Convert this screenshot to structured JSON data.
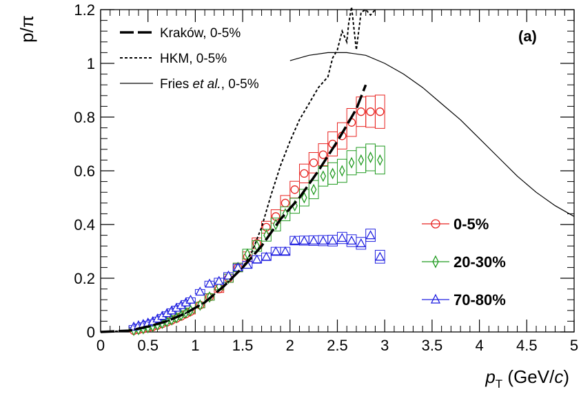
{
  "chart_data": {
    "type": "scatter",
    "title": "",
    "ylabel": "p/π",
    "xlabel": {
      "base": "p",
      "sub": "T",
      "units_prefix": " (GeV/",
      "units_italic": "c",
      "units_suffix": ")"
    },
    "panel_label": "(a)",
    "xlim": [
      0,
      5
    ],
    "ylim": [
      0,
      1.2
    ],
    "x_ticks": [
      0,
      0.5,
      1,
      1.5,
      2,
      2.5,
      3,
      3.5,
      4,
      4.5,
      5
    ],
    "x_tick_labels": [
      "0",
      "0.5",
      "1",
      "1.5",
      "2",
      "2.5",
      "3",
      "3.5",
      "4",
      "4.5",
      "5"
    ],
    "y_ticks": [
      0,
      0.2,
      0.4,
      0.6,
      0.8,
      1,
      1.2
    ],
    "y_tick_labels": [
      "0",
      "0.2",
      "0.4",
      "0.6",
      "0.8",
      "1",
      "1.2"
    ],
    "grid": false,
    "legend_models": {
      "placement": "top-left",
      "entries": [
        {
          "label": "Kraków, 0-5%",
          "style": "dashed-thick"
        },
        {
          "label_prefix": "HKM, 0-5%",
          "style": "dotted"
        },
        {
          "label_prefix": "Fries ",
          "label_italic": "et al.",
          "label_suffix": ", 0-5%",
          "style": "solid-thin"
        }
      ]
    },
    "legend_data": {
      "placement": "right",
      "entries": [
        {
          "label": "0-5%",
          "marker": "circle",
          "color": "#e8211e"
        },
        {
          "label": "20-30%",
          "marker": "diamond",
          "color": "#1f9a1f"
        },
        {
          "label": "70-80%",
          "marker": "triangle",
          "color": "#1f1fe0"
        }
      ]
    },
    "series": [
      {
        "name": "0-5%",
        "marker": "circle",
        "color": "#e8211e",
        "x": [
          0.35,
          0.4,
          0.45,
          0.5,
          0.55,
          0.6,
          0.65,
          0.7,
          0.75,
          0.8,
          0.85,
          0.9,
          0.95,
          1.05,
          1.15,
          1.25,
          1.35,
          1.45,
          1.55,
          1.65,
          1.75,
          1.85,
          1.95,
          2.05,
          2.15,
          2.25,
          2.35,
          2.45,
          2.55,
          2.65,
          2.75,
          2.85,
          2.95
        ],
        "y": [
          0.005,
          0.008,
          0.011,
          0.015,
          0.019,
          0.024,
          0.03,
          0.036,
          0.043,
          0.05,
          0.058,
          0.067,
          0.076,
          0.1,
          0.13,
          0.16,
          0.2,
          0.24,
          0.28,
          0.33,
          0.39,
          0.43,
          0.48,
          0.53,
          0.59,
          0.63,
          0.66,
          0.7,
          0.73,
          0.78,
          0.82,
          0.82,
          0.82
        ],
        "box_half_height": [
          0.004,
          0.004,
          0.004,
          0.005,
          0.005,
          0.005,
          0.005,
          0.006,
          0.006,
          0.007,
          0.007,
          0.008,
          0.009,
          0.01,
          0.012,
          0.013,
          0.015,
          0.016,
          0.018,
          0.02,
          0.022,
          0.025,
          0.028,
          0.031,
          0.035,
          0.038,
          0.041,
          0.045,
          0.049,
          0.052,
          0.055,
          0.058,
          0.062
        ],
        "box_half_width": 0.05
      },
      {
        "name": "20-30%",
        "marker": "diamond",
        "color": "#1f9a1f",
        "x": [
          0.35,
          0.4,
          0.45,
          0.5,
          0.55,
          0.6,
          0.65,
          0.7,
          0.75,
          0.8,
          0.85,
          0.9,
          0.95,
          1.05,
          1.15,
          1.25,
          1.35,
          1.45,
          1.55,
          1.65,
          1.75,
          1.85,
          1.95,
          2.05,
          2.15,
          2.25,
          2.35,
          2.45,
          2.55,
          2.65,
          2.75,
          2.85,
          2.95
        ],
        "y": [
          0.006,
          0.009,
          0.012,
          0.016,
          0.021,
          0.026,
          0.032,
          0.038,
          0.045,
          0.053,
          0.062,
          0.071,
          0.08,
          0.1,
          0.13,
          0.17,
          0.2,
          0.24,
          0.29,
          0.32,
          0.36,
          0.4,
          0.44,
          0.47,
          0.5,
          0.53,
          0.58,
          0.59,
          0.6,
          0.63,
          0.64,
          0.65,
          0.64
        ],
        "box_half_height": [
          0.004,
          0.004,
          0.004,
          0.005,
          0.005,
          0.005,
          0.006,
          0.006,
          0.006,
          0.007,
          0.007,
          0.008,
          0.009,
          0.01,
          0.012,
          0.013,
          0.015,
          0.016,
          0.018,
          0.02,
          0.022,
          0.024,
          0.026,
          0.028,
          0.031,
          0.034,
          0.037,
          0.04,
          0.043,
          0.045,
          0.047,
          0.05,
          0.052
        ],
        "box_half_width": 0.05
      },
      {
        "name": "70-80%",
        "marker": "triangle",
        "color": "#1f1fe0",
        "x": [
          0.35,
          0.4,
          0.45,
          0.5,
          0.55,
          0.6,
          0.65,
          0.7,
          0.75,
          0.8,
          0.85,
          0.9,
          0.95,
          1.05,
          1.15,
          1.25,
          1.35,
          1.45,
          1.55,
          1.65,
          1.75,
          1.85,
          1.95,
          2.05,
          2.15,
          2.25,
          2.35,
          2.45,
          2.55,
          2.65,
          2.75,
          2.85,
          2.95
        ],
        "y": [
          0.02,
          0.025,
          0.03,
          0.035,
          0.04,
          0.05,
          0.06,
          0.07,
          0.08,
          0.09,
          0.1,
          0.11,
          0.12,
          0.15,
          0.18,
          0.19,
          0.21,
          0.24,
          0.25,
          0.27,
          0.28,
          0.3,
          0.3,
          0.34,
          0.34,
          0.34,
          0.34,
          0.34,
          0.35,
          0.34,
          0.33,
          0.36,
          0.28
        ],
        "box_half_height": [
          0.004,
          0.004,
          0.004,
          0.005,
          0.005,
          0.005,
          0.005,
          0.005,
          0.006,
          0.006,
          0.006,
          0.007,
          0.007,
          0.008,
          0.009,
          0.01,
          0.011,
          0.012,
          0.013,
          0.014,
          0.014,
          0.015,
          0.015,
          0.016,
          0.017,
          0.018,
          0.019,
          0.02,
          0.021,
          0.022,
          0.022,
          0.023,
          0.024
        ],
        "box_half_width": 0.05
      }
    ],
    "curves": [
      {
        "name": "Kraków, 0-5%",
        "style": "dashed-thick",
        "x": [
          0,
          0.3,
          0.5,
          0.7,
          0.9,
          1.1,
          1.3,
          1.5,
          1.7,
          1.9,
          2.1,
          2.3,
          2.5,
          2.7,
          2.8
        ],
        "y": [
          0,
          0.005,
          0.02,
          0.04,
          0.07,
          0.11,
          0.17,
          0.24,
          0.32,
          0.42,
          0.5,
          0.6,
          0.71,
          0.83,
          0.92
        ]
      },
      {
        "name": "HKM, 0-5%",
        "style": "dotted",
        "x": [
          0,
          0.3,
          0.5,
          0.7,
          0.9,
          1.1,
          1.3,
          1.5,
          1.6,
          1.7,
          1.8,
          1.9,
          2.0,
          2.1,
          2.2,
          2.3,
          2.4,
          2.45,
          2.5,
          2.55,
          2.6,
          2.62,
          2.65,
          2.7,
          2.75,
          2.8,
          2.85,
          2.9
        ],
        "y": [
          0,
          0.005,
          0.02,
          0.04,
          0.07,
          0.11,
          0.17,
          0.24,
          0.3,
          0.39,
          0.51,
          0.62,
          0.71,
          0.79,
          0.85,
          0.91,
          0.95,
          1.02,
          1.05,
          1.12,
          1.08,
          1.15,
          1.21,
          1.05,
          1.19,
          1.2,
          1.18,
          1.2
        ]
      },
      {
        "name": "Fries et al., 0-5%",
        "style": "solid-thin",
        "x": [
          2.0,
          2.2,
          2.4,
          2.6,
          2.8,
          3.0,
          3.2,
          3.4,
          3.6,
          3.8,
          4.0,
          4.2,
          4.4,
          4.6,
          4.8,
          5.0
        ],
        "y": [
          1.01,
          1.03,
          1.04,
          1.04,
          1.03,
          1.0,
          0.96,
          0.91,
          0.85,
          0.79,
          0.72,
          0.65,
          0.58,
          0.52,
          0.47,
          0.43
        ]
      }
    ]
  }
}
